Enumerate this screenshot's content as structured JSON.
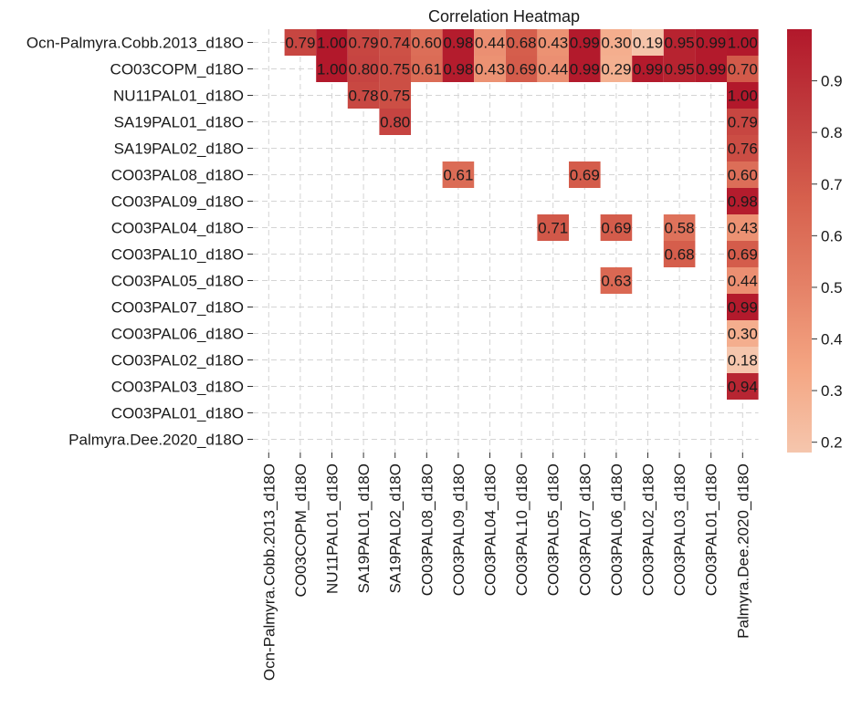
{
  "chart_data": {
    "type": "heatmap",
    "title": "Correlation Heatmap",
    "labels": [
      "Ocn-Palmyra.Cobb.2013_d18O",
      "CO03COPM_d18O",
      "NU11PAL01_d18O",
      "SA19PAL01_d18O",
      "SA19PAL02_d18O",
      "CO03PAL08_d18O",
      "CO03PAL09_d18O",
      "CO03PAL04_d18O",
      "CO03PAL10_d18O",
      "CO03PAL05_d18O",
      "CO03PAL07_d18O",
      "CO03PAL06_d18O",
      "CO03PAL02_d18O",
      "CO03PAL03_d18O",
      "CO03PAL01_d18O",
      "Palmyra.Dee.2020_d18O"
    ],
    "cells": [
      {
        "row": 0,
        "col": 1,
        "value": 0.79,
        "label": "0.79"
      },
      {
        "row": 0,
        "col": 2,
        "value": 1.0,
        "label": "1.00"
      },
      {
        "row": 0,
        "col": 3,
        "value": 0.79,
        "label": "0.79"
      },
      {
        "row": 0,
        "col": 4,
        "value": 0.74,
        "label": "0.74"
      },
      {
        "row": 0,
        "col": 5,
        "value": 0.6,
        "label": "0.60"
      },
      {
        "row": 0,
        "col": 6,
        "value": 0.98,
        "label": "0.98"
      },
      {
        "row": 0,
        "col": 7,
        "value": 0.44,
        "label": "0.44"
      },
      {
        "row": 0,
        "col": 8,
        "value": 0.68,
        "label": "0.68"
      },
      {
        "row": 0,
        "col": 9,
        "value": 0.43,
        "label": "0.43"
      },
      {
        "row": 0,
        "col": 10,
        "value": 0.99,
        "label": "0.99"
      },
      {
        "row": 0,
        "col": 11,
        "value": 0.3,
        "label": "0.30"
      },
      {
        "row": 0,
        "col": 12,
        "value": 0.19,
        "label": "0.19"
      },
      {
        "row": 0,
        "col": 13,
        "value": 0.95,
        "label": "0.95"
      },
      {
        "row": 0,
        "col": 14,
        "value": 0.99,
        "label": "0.99"
      },
      {
        "row": 0,
        "col": 15,
        "value": 1.0,
        "label": "1.00"
      },
      {
        "row": 1,
        "col": 2,
        "value": 1.0,
        "label": "1.00"
      },
      {
        "row": 1,
        "col": 3,
        "value": 0.8,
        "label": "0.80"
      },
      {
        "row": 1,
        "col": 4,
        "value": 0.75,
        "label": "0.75"
      },
      {
        "row": 1,
        "col": 5,
        "value": 0.61,
        "label": "0.61"
      },
      {
        "row": 1,
        "col": 6,
        "value": 0.98,
        "label": "0.98"
      },
      {
        "row": 1,
        "col": 7,
        "value": 0.43,
        "label": "0.43"
      },
      {
        "row": 1,
        "col": 8,
        "value": 0.69,
        "label": "0.69"
      },
      {
        "row": 1,
        "col": 9,
        "value": 0.44,
        "label": "0.44"
      },
      {
        "row": 1,
        "col": 10,
        "value": 0.99,
        "label": "0.99"
      },
      {
        "row": 1,
        "col": 11,
        "value": 0.29,
        "label": "0.29"
      },
      {
        "row": 1,
        "col": 12,
        "value": 0.99,
        "label": "0.99"
      },
      {
        "row": 1,
        "col": 13,
        "value": 0.95,
        "label": "0.95"
      },
      {
        "row": 1,
        "col": 14,
        "value": 0.99,
        "label": "0.99"
      },
      {
        "row": 1,
        "col": 15,
        "value": 0.7,
        "label": "0.70"
      },
      {
        "row": 2,
        "col": 3,
        "value": 0.78,
        "label": "0.78"
      },
      {
        "row": 2,
        "col": 4,
        "value": 0.75,
        "label": "0.75"
      },
      {
        "row": 2,
        "col": 15,
        "value": 1.0,
        "label": "1.00"
      },
      {
        "row": 3,
        "col": 4,
        "value": 0.8,
        "label": "0.80"
      },
      {
        "row": 3,
        "col": 15,
        "value": 0.79,
        "label": "0.79"
      },
      {
        "row": 4,
        "col": 15,
        "value": 0.76,
        "label": "0.76"
      },
      {
        "row": 5,
        "col": 6,
        "value": 0.61,
        "label": "0.61"
      },
      {
        "row": 5,
        "col": 10,
        "value": 0.69,
        "label": "0.69"
      },
      {
        "row": 5,
        "col": 15,
        "value": 0.6,
        "label": "0.60"
      },
      {
        "row": 6,
        "col": 15,
        "value": 0.98,
        "label": "0.98"
      },
      {
        "row": 7,
        "col": 9,
        "value": 0.71,
        "label": "0.71"
      },
      {
        "row": 7,
        "col": 11,
        "value": 0.69,
        "label": "0.69"
      },
      {
        "row": 7,
        "col": 13,
        "value": 0.58,
        "label": "0.58"
      },
      {
        "row": 7,
        "col": 15,
        "value": 0.43,
        "label": "0.43"
      },
      {
        "row": 8,
        "col": 13,
        "value": 0.68,
        "label": "0.68"
      },
      {
        "row": 8,
        "col": 15,
        "value": 0.69,
        "label": "0.69"
      },
      {
        "row": 9,
        "col": 11,
        "value": 0.63,
        "label": "0.63"
      },
      {
        "row": 9,
        "col": 15,
        "value": 0.44,
        "label": "0.44"
      },
      {
        "row": 10,
        "col": 15,
        "value": 0.99,
        "label": "0.99"
      },
      {
        "row": 11,
        "col": 15,
        "value": 0.3,
        "label": "0.30"
      },
      {
        "row": 12,
        "col": 15,
        "value": 0.18,
        "label": "0.18"
      },
      {
        "row": 13,
        "col": 15,
        "value": 0.94,
        "label": "0.94"
      }
    ],
    "colorbar": {
      "min": 0.18,
      "max": 1.0,
      "ticks": [
        {
          "value": 0.2,
          "label": "0.2"
        },
        {
          "value": 0.3,
          "label": "0.3"
        },
        {
          "value": 0.4,
          "label": "0.4"
        },
        {
          "value": 0.5,
          "label": "0.5"
        },
        {
          "value": 0.6,
          "label": "0.6"
        },
        {
          "value": 0.7,
          "label": "0.7"
        },
        {
          "value": 0.8,
          "label": "0.8"
        },
        {
          "value": 0.9,
          "label": "0.9"
        }
      ],
      "colormap": "RdBu_r (positive half)",
      "colors": [
        "#f5c6ad",
        "#f4a582",
        "#e48066",
        "#d6604d",
        "#c13c3d",
        "#b2182b"
      ]
    },
    "grid": true,
    "grid_style": "dashed",
    "legend": "colorbar-right"
  }
}
